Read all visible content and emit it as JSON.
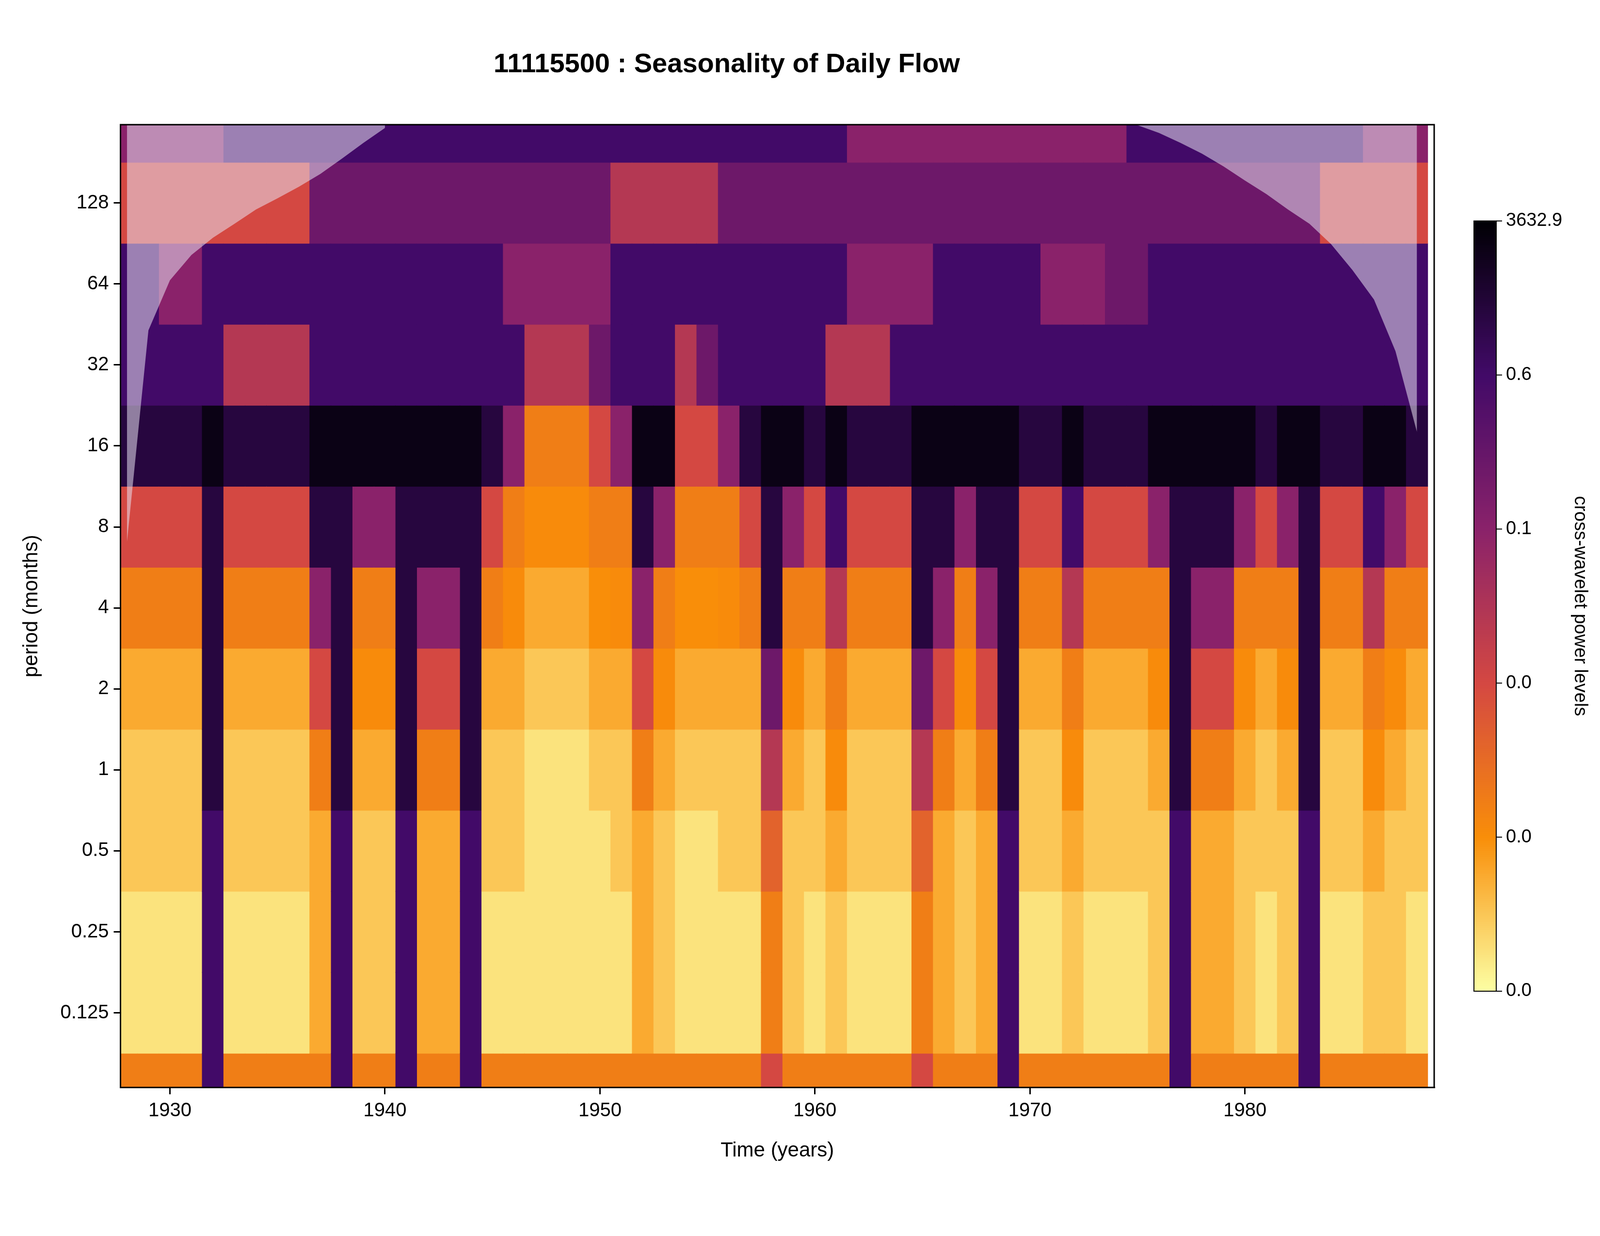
{
  "chart_data": {
    "type": "heatmap",
    "title": "11115500 : Seasonality of Daily Flow",
    "x_label": "Time (years)",
    "y_label": "period (months)",
    "log": "y",
    "grid": false,
    "xlim": [
      1927.7,
      1988.8
    ],
    "xticks": [
      1930,
      1940,
      1950,
      1960,
      1970,
      1980
    ],
    "ylim": [
      0.066,
      250
    ],
    "yticks": [
      0.125,
      0.25,
      0.5,
      1,
      2,
      4,
      8,
      16,
      32,
      64,
      128
    ],
    "x": [
      1928,
      1929,
      1930,
      1931,
      1932,
      1933,
      1934,
      1935,
      1936,
      1937,
      1938,
      1939,
      1940,
      1941,
      1942,
      1943,
      1944,
      1945,
      1946,
      1947,
      1948,
      1949,
      1950,
      1951,
      1952,
      1953,
      1954,
      1955,
      1956,
      1957,
      1958,
      1959,
      1960,
      1961,
      1962,
      1963,
      1964,
      1965,
      1966,
      1967,
      1968,
      1969,
      1970,
      1971,
      1972,
      1973,
      1974,
      1975,
      1976,
      1977,
      1978,
      1979,
      1980,
      1981,
      1982,
      1983,
      1984,
      1985,
      1986,
      1987,
      1988
    ],
    "y": [
      0.0625,
      0.125,
      0.25,
      0.5,
      1,
      2,
      4,
      8,
      16,
      32,
      64,
      128,
      256
    ],
    "values": [
      [
        0.01,
        0.001,
        0.001,
        0.002,
        0.002,
        0.003,
        0.01,
        0.03,
        1500,
        0.6,
        0.6,
        0.03,
        0.1
      ],
      [
        0.01,
        0.001,
        0.001,
        0.002,
        0.002,
        0.003,
        0.01,
        0.03,
        1500,
        0.6,
        0.6,
        0.03,
        0.1
      ],
      [
        0.01,
        0.001,
        0.001,
        0.002,
        0.002,
        0.003,
        0.01,
        0.03,
        1500,
        0.6,
        0.1,
        0.03,
        0.1
      ],
      [
        0.01,
        0.001,
        0.001,
        0.002,
        0.002,
        0.003,
        0.01,
        0.03,
        1500,
        0.6,
        0.1,
        0.03,
        0.1
      ],
      [
        0.6,
        0.6,
        0.6,
        0.6,
        1500,
        1500,
        1500,
        1500,
        3000,
        0.6,
        0.6,
        0.03,
        0.1
      ],
      [
        0.01,
        0.001,
        0.001,
        0.002,
        0.002,
        0.003,
        0.01,
        0.03,
        1500,
        0.06,
        0.6,
        0.03,
        0.6
      ],
      [
        0.01,
        0.001,
        0.001,
        0.002,
        0.002,
        0.003,
        0.01,
        0.03,
        1500,
        0.06,
        0.6,
        0.03,
        0.6
      ],
      [
        0.01,
        0.001,
        0.001,
        0.002,
        0.002,
        0.003,
        0.01,
        0.03,
        1500,
        0.06,
        0.6,
        0.03,
        0.6
      ],
      [
        0.01,
        0.001,
        0.001,
        0.002,
        0.002,
        0.003,
        0.01,
        0.03,
        1500,
        0.06,
        0.6,
        0.03,
        0.6
      ],
      [
        0.01,
        0.003,
        0.003,
        0.003,
        0.01,
        0.03,
        0.1,
        1500,
        3000,
        0.6,
        0.6,
        0.3,
        0.6
      ],
      [
        0.6,
        0.6,
        0.6,
        0.6,
        1500,
        1500,
        1500,
        1500,
        3000,
        0.6,
        0.6,
        0.3,
        0.6
      ],
      [
        0.01,
        0.002,
        0.002,
        0.002,
        0.003,
        0.005,
        0.01,
        0.1,
        3000,
        0.6,
        0.6,
        0.3,
        0.6
      ],
      [
        0.01,
        0.002,
        0.002,
        0.002,
        0.003,
        0.005,
        0.01,
        0.1,
        3000,
        0.6,
        0.6,
        0.3,
        0.6
      ],
      [
        0.6,
        0.6,
        0.6,
        0.6,
        1500,
        1500,
        1500,
        1500,
        3000,
        0.6,
        0.6,
        0.3,
        0.6
      ],
      [
        0.01,
        0.003,
        0.003,
        0.003,
        0.01,
        0.03,
        0.1,
        1500,
        3000,
        0.6,
        0.6,
        0.3,
        0.6
      ],
      [
        0.01,
        0.003,
        0.003,
        0.003,
        0.01,
        0.03,
        0.1,
        1500,
        3000,
        0.6,
        0.6,
        0.3,
        0.6
      ],
      [
        0.6,
        0.6,
        0.6,
        0.6,
        1500,
        1500,
        1500,
        1500,
        3000,
        0.6,
        0.6,
        0.3,
        0.6
      ],
      [
        0.01,
        0.001,
        0.001,
        0.002,
        0.002,
        0.003,
        0.01,
        0.03,
        1500,
        0.6,
        0.6,
        0.3,
        0.6
      ],
      [
        0.01,
        0.001,
        0.001,
        0.002,
        0.002,
        0.003,
        0.005,
        0.01,
        0.1,
        0.6,
        0.1,
        0.3,
        0.6
      ],
      [
        0.01,
        0.001,
        0.001,
        0.001,
        0.001,
        0.002,
        0.003,
        0.005,
        0.01,
        0.06,
        0.1,
        0.3,
        0.6
      ],
      [
        0.01,
        0.001,
        0.001,
        0.001,
        0.001,
        0.002,
        0.003,
        0.005,
        0.01,
        0.06,
        0.1,
        0.3,
        0.6
      ],
      [
        0.01,
        0.001,
        0.001,
        0.001,
        0.001,
        0.002,
        0.003,
        0.005,
        0.01,
        0.06,
        0.1,
        0.3,
        0.6
      ],
      [
        0.01,
        0.001,
        0.001,
        0.001,
        0.002,
        0.003,
        0.004,
        0.01,
        0.03,
        0.3,
        0.1,
        0.3,
        0.6
      ],
      [
        0.01,
        0.001,
        0.001,
        0.002,
        0.002,
        0.003,
        0.005,
        0.01,
        0.1,
        0.6,
        0.6,
        0.06,
        0.6
      ],
      [
        0.01,
        0.003,
        0.003,
        0.003,
        0.01,
        0.03,
        0.1,
        1500,
        3000,
        0.6,
        0.6,
        0.06,
        0.6
      ],
      [
        0.01,
        0.002,
        0.002,
        0.002,
        0.003,
        0.005,
        0.01,
        0.1,
        3000,
        0.6,
        0.6,
        0.06,
        0.6
      ],
      [
        0.01,
        0.001,
        0.001,
        0.001,
        0.002,
        0.003,
        0.004,
        0.01,
        0.03,
        0.06,
        0.6,
        0.06,
        0.6
      ],
      [
        0.01,
        0.001,
        0.001,
        0.001,
        0.002,
        0.003,
        0.004,
        0.01,
        0.03,
        0.3,
        0.6,
        0.06,
        0.6
      ],
      [
        0.01,
        0.001,
        0.001,
        0.002,
        0.002,
        0.003,
        0.005,
        0.01,
        0.1,
        0.6,
        0.6,
        0.3,
        0.6
      ],
      [
        0.01,
        0.001,
        0.001,
        0.002,
        0.002,
        0.003,
        0.01,
        0.03,
        1500,
        0.6,
        0.6,
        0.3,
        0.6
      ],
      [
        0.03,
        0.01,
        0.01,
        0.02,
        0.06,
        0.3,
        1500,
        1500,
        3000,
        0.6,
        0.6,
        0.3,
        0.6
      ],
      [
        0.01,
        0.002,
        0.002,
        0.002,
        0.003,
        0.005,
        0.01,
        0.1,
        3000,
        0.6,
        0.6,
        0.3,
        0.6
      ],
      [
        0.01,
        0.001,
        0.001,
        0.002,
        0.002,
        0.003,
        0.01,
        0.03,
        1500,
        0.6,
        0.6,
        0.3,
        0.6
      ],
      [
        0.01,
        0.002,
        0.002,
        0.003,
        0.005,
        0.01,
        0.06,
        0.6,
        3000,
        0.06,
        0.6,
        0.3,
        0.6
      ],
      [
        0.01,
        0.001,
        0.001,
        0.002,
        0.002,
        0.003,
        0.01,
        0.03,
        1500,
        0.06,
        0.1,
        0.3,
        0.1
      ],
      [
        0.01,
        0.001,
        0.001,
        0.002,
        0.002,
        0.003,
        0.01,
        0.03,
        1500,
        0.06,
        0.1,
        0.3,
        0.1
      ],
      [
        0.01,
        0.001,
        0.001,
        0.002,
        0.002,
        0.003,
        0.01,
        0.03,
        1500,
        0.6,
        0.1,
        0.3,
        0.1
      ],
      [
        0.03,
        0.01,
        0.01,
        0.02,
        0.06,
        0.3,
        1500,
        1500,
        3000,
        0.6,
        0.1,
        0.3,
        0.1
      ],
      [
        0.01,
        0.003,
        0.003,
        0.003,
        0.01,
        0.03,
        0.1,
        1500,
        3000,
        0.6,
        0.6,
        0.3,
        0.1
      ],
      [
        0.01,
        0.002,
        0.002,
        0.002,
        0.003,
        0.005,
        0.01,
        0.1,
        3000,
        0.6,
        0.6,
        0.3,
        0.1
      ],
      [
        0.01,
        0.003,
        0.003,
        0.003,
        0.01,
        0.03,
        0.1,
        1500,
        3000,
        0.6,
        0.6,
        0.3,
        0.1
      ],
      [
        0.6,
        0.6,
        0.6,
        0.6,
        1500,
        1500,
        1500,
        1500,
        3000,
        0.6,
        0.6,
        0.3,
        0.1
      ],
      [
        0.01,
        0.001,
        0.001,
        0.002,
        0.002,
        0.003,
        0.01,
        0.03,
        1500,
        0.6,
        0.6,
        0.3,
        0.1
      ],
      [
        0.01,
        0.001,
        0.001,
        0.002,
        0.002,
        0.003,
        0.01,
        0.03,
        1500,
        0.6,
        0.1,
        0.3,
        0.1
      ],
      [
        0.01,
        0.002,
        0.002,
        0.003,
        0.005,
        0.01,
        0.06,
        0.6,
        3000,
        0.6,
        0.1,
        0.3,
        0.1
      ],
      [
        0.01,
        0.001,
        0.001,
        0.002,
        0.002,
        0.003,
        0.01,
        0.03,
        1500,
        0.6,
        0.1,
        0.3,
        0.1
      ],
      [
        0.01,
        0.001,
        0.001,
        0.002,
        0.002,
        0.003,
        0.01,
        0.03,
        1500,
        0.6,
        0.3,
        0.3,
        0.1
      ],
      [
        0.01,
        0.001,
        0.001,
        0.002,
        0.002,
        0.003,
        0.01,
        0.03,
        1500,
        0.6,
        0.3,
        0.3,
        0.6
      ],
      [
        0.01,
        0.002,
        0.002,
        0.002,
        0.003,
        0.005,
        0.01,
        0.1,
        3000,
        0.6,
        0.6,
        0.3,
        0.6
      ],
      [
        0.6,
        0.6,
        0.6,
        0.6,
        1500,
        1500,
        1500,
        1500,
        3000,
        0.6,
        0.6,
        0.3,
        0.6
      ],
      [
        0.01,
        0.003,
        0.003,
        0.003,
        0.01,
        0.03,
        0.1,
        1500,
        3000,
        0.6,
        0.6,
        0.3,
        0.6
      ],
      [
        0.01,
        0.003,
        0.003,
        0.003,
        0.01,
        0.03,
        0.1,
        1500,
        3000,
        0.6,
        0.6,
        0.3,
        0.6
      ],
      [
        0.01,
        0.002,
        0.002,
        0.002,
        0.003,
        0.005,
        0.01,
        0.1,
        3000,
        0.6,
        0.6,
        0.3,
        0.6
      ],
      [
        0.01,
        0.001,
        0.001,
        0.002,
        0.002,
        0.003,
        0.01,
        0.03,
        1500,
        0.6,
        0.6,
        0.3,
        0.6
      ],
      [
        0.01,
        0.002,
        0.002,
        0.002,
        0.003,
        0.005,
        0.01,
        0.1,
        3000,
        0.6,
        0.6,
        0.3,
        0.6
      ],
      [
        0.6,
        0.6,
        0.6,
        0.6,
        1500,
        1500,
        1500,
        1500,
        3000,
        0.6,
        0.6,
        0.3,
        0.6
      ],
      [
        0.01,
        0.001,
        0.001,
        0.002,
        0.002,
        0.003,
        0.01,
        0.03,
        1500,
        0.6,
        0.6,
        0.03,
        0.6
      ],
      [
        0.01,
        0.001,
        0.001,
        0.002,
        0.002,
        0.003,
        0.01,
        0.03,
        1500,
        0.6,
        0.6,
        0.03,
        0.6
      ],
      [
        0.01,
        0.002,
        0.002,
        0.003,
        0.005,
        0.01,
        0.06,
        0.6,
        3000,
        0.6,
        0.6,
        0.03,
        0.1
      ],
      [
        0.01,
        0.002,
        0.002,
        0.002,
        0.003,
        0.005,
        0.01,
        0.1,
        3000,
        0.6,
        0.6,
        0.03,
        0.1
      ],
      [
        0.01,
        0.001,
        0.001,
        0.002,
        0.002,
        0.003,
        0.01,
        0.03,
        1500,
        0.6,
        0.6,
        0.03,
        0.1
      ]
    ],
    "cone_of_influence": [
      7,
      43,
      66,
      82,
      95,
      107,
      121,
      133,
      147,
      164,
      187,
      214,
      243,
      null,
      null,
      null,
      null,
      null,
      null,
      null,
      null,
      null,
      null,
      null,
      null,
      null,
      null,
      null,
      null,
      null,
      null,
      null,
      null,
      null,
      null,
      null,
      null,
      null,
      null,
      null,
      null,
      null,
      null,
      null,
      null,
      null,
      null,
      249,
      233,
      214,
      195,
      175,
      155,
      138,
      121,
      107,
      90,
      72,
      56,
      36,
      18
    ],
    "colorbar": {
      "label": "cross-wavelet power levels",
      "range": [
        0,
        3632.9
      ],
      "ticks": [
        {
          "value": 0,
          "label": "0.0"
        },
        {
          "value": 0.004,
          "label": "0.0"
        },
        {
          "value": 0.03,
          "label": "0.0"
        },
        0.1,
        0.6,
        3632.9
      ]
    }
  }
}
